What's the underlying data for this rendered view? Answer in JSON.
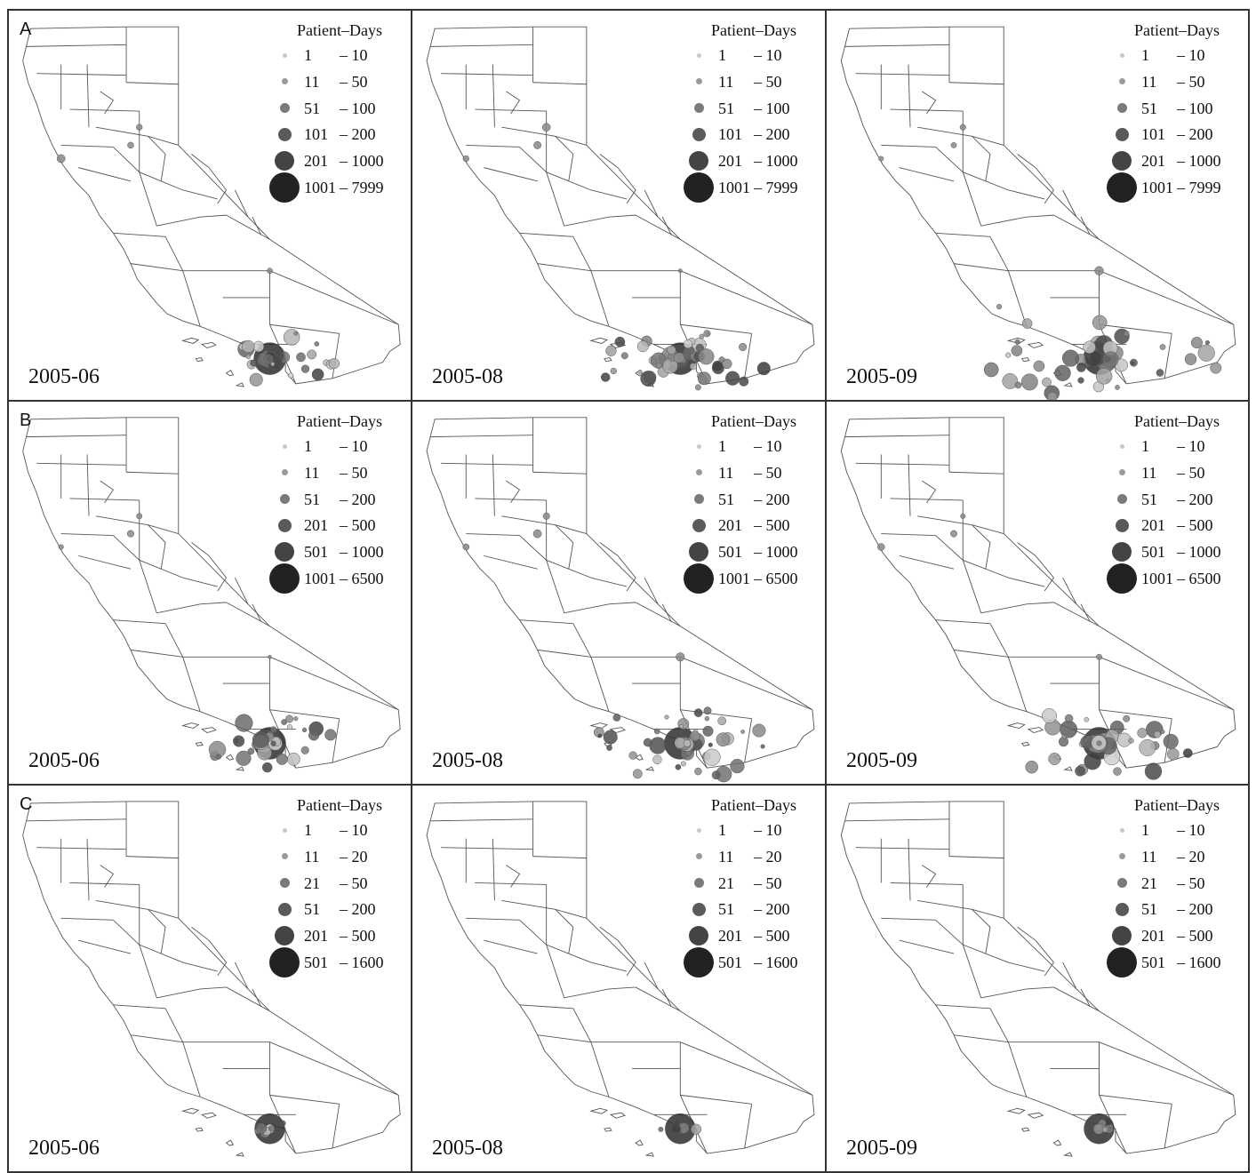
{
  "colors": {
    "border": "#333333",
    "map_line": "#555555",
    "dot_light": "#bdbdbd",
    "dot_dark": "#222222"
  },
  "rows": [
    {
      "letter": "A",
      "legend_title": "Patient–Days",
      "legend": [
        {
          "lo": "1",
          "hi": "– 10"
        },
        {
          "lo": "11",
          "hi": "– 50"
        },
        {
          "lo": "51",
          "hi": "– 100"
        },
        {
          "lo": "101",
          "hi": "– 200"
        },
        {
          "lo": "201",
          "hi": "– 1000"
        },
        {
          "lo": "1001",
          "hi": "– 7999"
        }
      ],
      "panels": [
        {
          "date": "2005-06",
          "spread": 1
        },
        {
          "date": "2005-08",
          "spread": 2
        },
        {
          "date": "2005-09",
          "spread": 3
        }
      ]
    },
    {
      "letter": "B",
      "legend_title": "Patient–Days",
      "legend": [
        {
          "lo": "1",
          "hi": "– 10"
        },
        {
          "lo": "11",
          "hi": "– 50"
        },
        {
          "lo": "51",
          "hi": "– 200"
        },
        {
          "lo": "201",
          "hi": "– 500"
        },
        {
          "lo": "501",
          "hi": "– 1000"
        },
        {
          "lo": "1001",
          "hi": "– 6500"
        }
      ],
      "panels": [
        {
          "date": "2005-06",
          "spread": 1
        },
        {
          "date": "2005-08",
          "spread": 2
        },
        {
          "date": "2005-09",
          "spread": 2
        }
      ]
    },
    {
      "letter": "C",
      "legend_title": "Patient–Days",
      "legend": [
        {
          "lo": "1",
          "hi": "– 10"
        },
        {
          "lo": "11",
          "hi": "– 20"
        },
        {
          "lo": "21",
          "hi": "– 50"
        },
        {
          "lo": "51",
          "hi": "– 200"
        },
        {
          "lo": "201",
          "hi": "– 500"
        },
        {
          "lo": "501",
          "hi": "– 1600"
        }
      ],
      "panels": [
        {
          "date": "2005-06",
          "spread": 0
        },
        {
          "date": "2005-08",
          "spread": 0
        },
        {
          "date": "2005-09",
          "spread": 0
        }
      ]
    }
  ]
}
